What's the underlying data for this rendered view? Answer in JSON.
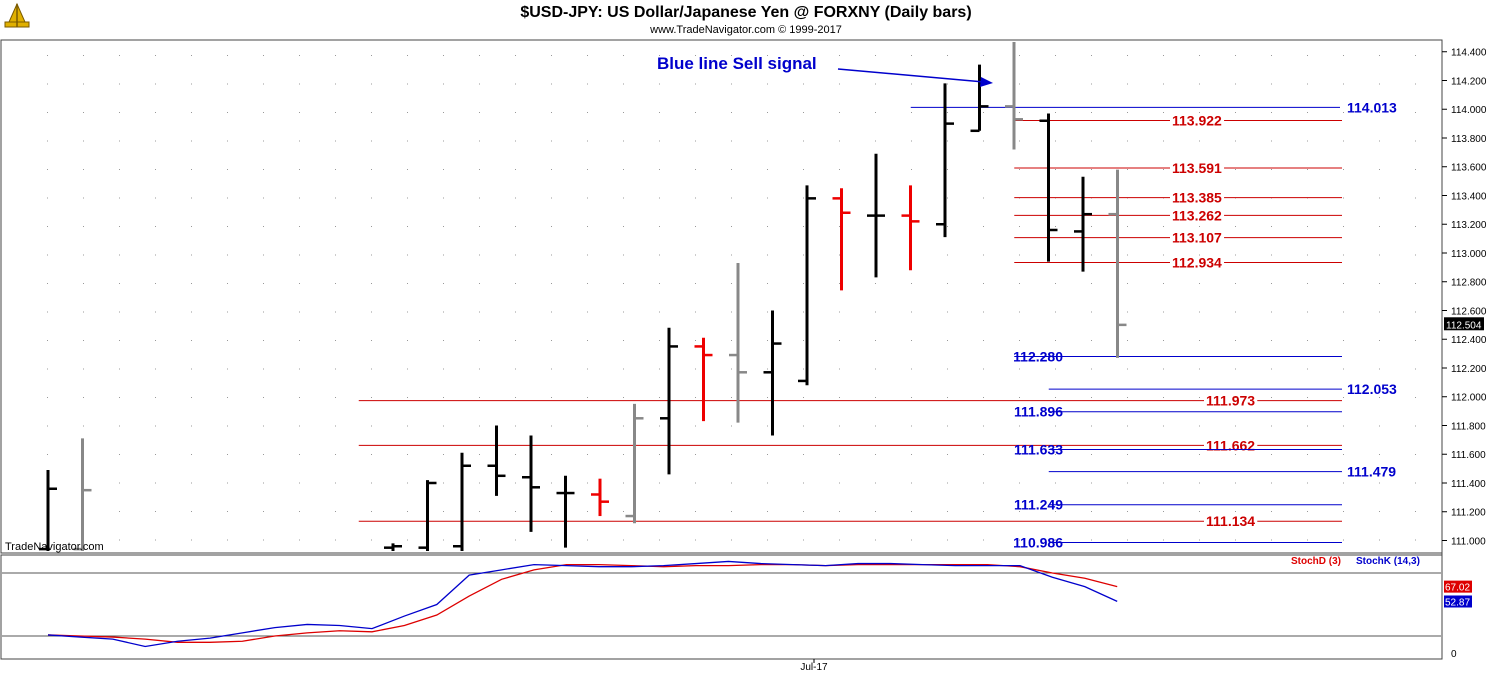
{
  "header": {
    "title": "$USD-JPY:  US Dollar/Japanese Yen @ FORXNY  (Daily bars)",
    "copyright": "www.TradeNavigator.com © 1999-2017"
  },
  "watermark": "TradeNavigator.com",
  "annotation": "Blue line Sell signal",
  "colors": {
    "up": "#000000",
    "down": "#ee0000",
    "neutral": "#888888",
    "blue": "#0000cc",
    "red": "#cc0000"
  },
  "chart_data": [
    {
      "type": "bar",
      "title": "$USD-JPY:  US Dollar/Japanese Yen @ FORXNY  (Daily bars)",
      "ylim": [
        110.91,
        114.51
      ],
      "y_ticks": [
        "114.400",
        "114.200",
        "114.000",
        "113.800",
        "113.600",
        "113.400",
        "113.200",
        "113.000",
        "112.800",
        "112.600",
        "112.400",
        "112.200",
        "112.000",
        "111.800",
        "111.600",
        "111.400",
        "111.200",
        "111.000"
      ],
      "last_price": "112.504",
      "x_labels": [
        {
          "label": "Jul-17",
          "bar_index": 22
        }
      ],
      "bars": [
        {
          "i": 0,
          "high": 111.49,
          "low": 110.91,
          "open": 110.94,
          "close": 111.36,
          "color": "up"
        },
        {
          "i": 1,
          "high": 111.71,
          "low": 110.91,
          "open": 110.94,
          "close": 111.35,
          "color": "neutral"
        },
        {
          "i": 10,
          "high": 110.98,
          "low": 110.91,
          "open": 110.95,
          "close": 110.96,
          "color": "up"
        },
        {
          "i": 11,
          "high": 111.42,
          "low": 110.91,
          "open": 110.95,
          "close": 111.4,
          "color": "up"
        },
        {
          "i": 12,
          "high": 111.61,
          "low": 110.91,
          "open": 110.96,
          "close": 111.52,
          "color": "up"
        },
        {
          "i": 13,
          "high": 111.8,
          "low": 111.31,
          "open": 111.52,
          "close": 111.45,
          "color": "up"
        },
        {
          "i": 14,
          "high": 111.73,
          "low": 111.06,
          "open": 111.44,
          "close": 111.37,
          "color": "up"
        },
        {
          "i": 15,
          "high": 111.45,
          "low": 110.95,
          "open": 111.33,
          "close": 111.33,
          "color": "up"
        },
        {
          "i": 16,
          "high": 111.43,
          "low": 111.17,
          "open": 111.32,
          "close": 111.27,
          "color": "down"
        },
        {
          "i": 17,
          "high": 111.95,
          "low": 111.12,
          "open": 111.17,
          "close": 111.85,
          "color": "neutral"
        },
        {
          "i": 18,
          "high": 112.48,
          "low": 111.46,
          "open": 111.85,
          "close": 112.35,
          "color": "up"
        },
        {
          "i": 19,
          "high": 112.41,
          "low": 111.83,
          "open": 112.35,
          "close": 112.29,
          "color": "down"
        },
        {
          "i": 20,
          "high": 112.93,
          "low": 111.82,
          "open": 112.29,
          "close": 112.17,
          "color": "neutral"
        },
        {
          "i": 21,
          "high": 112.6,
          "low": 111.73,
          "open": 112.17,
          "close": 112.37,
          "color": "up"
        },
        {
          "i": 22,
          "high": 113.47,
          "low": 112.08,
          "open": 112.11,
          "close": 113.38,
          "color": "up"
        },
        {
          "i": 23,
          "high": 113.45,
          "low": 112.74,
          "open": 113.38,
          "close": 113.28,
          "color": "down"
        },
        {
          "i": 24,
          "high": 113.69,
          "low": 112.83,
          "open": 113.26,
          "close": 113.26,
          "color": "up"
        },
        {
          "i": 25,
          "high": 113.47,
          "low": 112.88,
          "open": 113.26,
          "close": 113.22,
          "color": "down"
        },
        {
          "i": 26,
          "high": 114.18,
          "low": 113.11,
          "open": 113.2,
          "close": 113.9,
          "color": "up"
        },
        {
          "i": 27,
          "high": 114.31,
          "low": 113.85,
          "open": 113.85,
          "close": 114.02,
          "color": "up"
        },
        {
          "i": 28,
          "high": 114.51,
          "low": 113.72,
          "open": 114.02,
          "close": 113.93,
          "color": "neutral"
        },
        {
          "i": 29,
          "high": 113.97,
          "low": 112.94,
          "open": 113.92,
          "close": 113.16,
          "color": "up"
        },
        {
          "i": 30,
          "high": 113.53,
          "low": 112.87,
          "open": 113.15,
          "close": 113.27,
          "color": "up"
        },
        {
          "i": 31,
          "high": 113.58,
          "low": 112.27,
          "open": 113.27,
          "close": 112.5,
          "color": "neutral"
        }
      ],
      "levels": [
        {
          "value": "114.013",
          "y": 114.013,
          "color": "blue",
          "x_from_bar": 25.5,
          "label_pos": "far"
        },
        {
          "value": "113.922",
          "y": 113.922,
          "color": "red",
          "x_from_bar": 28.5,
          "label_pos": "mid"
        },
        {
          "value": "113.591",
          "y": 113.591,
          "color": "red",
          "x_from_bar": 28.5,
          "label_pos": "mid"
        },
        {
          "value": "113.385",
          "y": 113.385,
          "color": "red",
          "x_from_bar": 28.5,
          "label_pos": "mid"
        },
        {
          "value": "113.262",
          "y": 113.262,
          "color": "red",
          "x_from_bar": 28.5,
          "label_pos": "mid"
        },
        {
          "value": "113.107",
          "y": 113.107,
          "color": "red",
          "x_from_bar": 28.5,
          "label_pos": "mid"
        },
        {
          "value": "112.934",
          "y": 112.934,
          "color": "red",
          "x_from_bar": 28.5,
          "label_pos": "mid"
        },
        {
          "value": "112.280",
          "y": 112.28,
          "color": "blue",
          "x_from_bar": 28.5,
          "label_pos": "left"
        },
        {
          "value": "112.053",
          "y": 112.053,
          "color": "blue",
          "x_from_bar": 29.5,
          "label_pos": "far"
        },
        {
          "value": "111.973",
          "y": 111.973,
          "color": "red",
          "x_from_bar": 9.5,
          "label_pos": "mid"
        },
        {
          "value": "111.896",
          "y": 111.896,
          "color": "blue",
          "x_from_bar": 29.5,
          "label_pos": "left"
        },
        {
          "value": "111.662",
          "y": 111.662,
          "color": "red",
          "x_from_bar": 9.5,
          "label_pos": "mid"
        },
        {
          "value": "111.633",
          "y": 111.633,
          "color": "blue",
          "x_from_bar": 29.5,
          "label_pos": "left"
        },
        {
          "value": "111.479",
          "y": 111.479,
          "color": "blue",
          "x_from_bar": 29.5,
          "label_pos": "far"
        },
        {
          "value": "111.249",
          "y": 111.249,
          "color": "blue",
          "x_from_bar": 29.5,
          "label_pos": "left"
        },
        {
          "value": "111.134",
          "y": 111.134,
          "color": "red",
          "x_from_bar": 9.5,
          "label_pos": "mid"
        },
        {
          "value": "110.986",
          "y": 110.986,
          "color": "blue",
          "x_from_bar": 29.5,
          "label_pos": "left"
        }
      ]
    },
    {
      "type": "line",
      "ylim": [
        0,
        100
      ],
      "y_ticks": [
        "0"
      ],
      "ref_lines": [
        80,
        20
      ],
      "values_tags": {
        "stochd": "67.02",
        "stochk": "52.87"
      },
      "series": [
        {
          "name": "StochD (3)",
          "color": "#dd0000",
          "points": [
            [
              0,
              21
            ],
            [
              1,
              20
            ],
            [
              2,
              19
            ],
            [
              3,
              17
            ],
            [
              4,
              14
            ],
            [
              5,
              14
            ],
            [
              6,
              15
            ],
            [
              7,
              20
            ],
            [
              8,
              23
            ],
            [
              9,
              25
            ],
            [
              10,
              24
            ],
            [
              11,
              30
            ],
            [
              12,
              40
            ],
            [
              13,
              58
            ],
            [
              14,
              74
            ],
            [
              15,
              83
            ],
            [
              16,
              88
            ],
            [
              17,
              88
            ],
            [
              18,
              87
            ],
            [
              19,
              86
            ],
            [
              20,
              87
            ],
            [
              21,
              87
            ],
            [
              22,
              88
            ],
            [
              23,
              88
            ],
            [
              24,
              87
            ],
            [
              25,
              88
            ],
            [
              26,
              88
            ],
            [
              27,
              88
            ],
            [
              28,
              88
            ],
            [
              29,
              88
            ],
            [
              30,
              86
            ],
            [
              31,
              80
            ],
            [
              32,
              75
            ],
            [
              33,
              67
            ]
          ]
        },
        {
          "name": "StochK (14,3)",
          "color": "#0000cc",
          "points": [
            [
              0,
              21
            ],
            [
              1,
              19
            ],
            [
              2,
              17
            ],
            [
              3,
              10
            ],
            [
              4,
              15
            ],
            [
              5,
              18
            ],
            [
              6,
              23
            ],
            [
              7,
              28
            ],
            [
              8,
              31
            ],
            [
              9,
              30
            ],
            [
              10,
              27
            ],
            [
              11,
              39
            ],
            [
              12,
              50
            ],
            [
              13,
              78
            ],
            [
              14,
              83
            ],
            [
              15,
              88
            ],
            [
              16,
              87
            ],
            [
              17,
              86
            ],
            [
              18,
              86
            ],
            [
              19,
              87
            ],
            [
              20,
              89
            ],
            [
              21,
              91
            ],
            [
              22,
              89
            ],
            [
              23,
              88
            ],
            [
              24,
              87
            ],
            [
              25,
              89
            ],
            [
              26,
              89
            ],
            [
              27,
              88
            ],
            [
              28,
              87
            ],
            [
              29,
              87
            ],
            [
              30,
              87
            ],
            [
              31,
              76
            ],
            [
              32,
              67
            ],
            [
              33,
              53
            ]
          ]
        }
      ]
    }
  ]
}
